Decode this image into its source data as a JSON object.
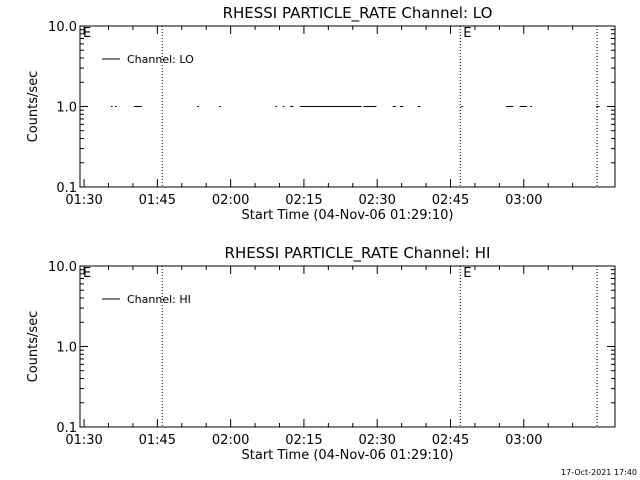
{
  "footer_timestamp": "17-Oct-2021 17:40",
  "chart_data": [
    {
      "type": "line",
      "title": "RHESSI PARTICLE_RATE Channel: LO",
      "xlabel": "Start Time (04-Nov-06 01:29:10)",
      "ylabel": "Counts/sec",
      "y_scale": "log",
      "ylim": [
        0.1,
        10.0
      ],
      "y_ticks": [
        "10.0",
        "1.0",
        "0.1"
      ],
      "x_tick_labels": [
        "01:30",
        "01:45",
        "02:00",
        "02:15",
        "02:30",
        "02:45",
        "03:00"
      ],
      "x_range": [
        "01:29:10",
        "03:18:40"
      ],
      "legend": {
        "label": "Channel: LO",
        "placement": "top-left"
      },
      "markers": [
        {
          "label": "E",
          "x": "01:29:10"
        },
        {
          "label": "",
          "x": "01:46:00"
        },
        {
          "label": "E",
          "x": "02:47:00"
        },
        {
          "label": "",
          "x": "03:15:00"
        }
      ],
      "series": [
        {
          "values": 1.0,
          "segments": [
            [
              "01:35:30",
              "01:35:50"
            ],
            [
              "01:36:20",
              "01:36:40"
            ],
            [
              "01:40:10",
              "01:41:50"
            ],
            [
              "01:53:10",
              "01:53:30"
            ],
            [
              "01:57:40",
              "01:58:00"
            ],
            [
              "02:09:10",
              "02:09:30"
            ],
            [
              "02:10:40",
              "02:11:00"
            ],
            [
              "02:12:10",
              "02:12:50"
            ],
            [
              "02:14:10",
              "02:26:50"
            ],
            [
              "02:27:10",
              "02:29:50"
            ],
            [
              "02:33:10",
              "02:33:50"
            ],
            [
              "02:34:40",
              "02:35:20"
            ],
            [
              "02:38:20",
              "02:38:50"
            ],
            [
              "02:47:10",
              "02:47:30"
            ],
            [
              "02:56:20",
              "02:57:50"
            ],
            [
              "02:59:10",
              "03:00:40"
            ],
            [
              "03:01:20",
              "03:01:40"
            ],
            [
              "03:14:50",
              "03:15:30"
            ]
          ]
        }
      ]
    },
    {
      "type": "line",
      "title": "RHESSI PARTICLE_RATE Channel: HI",
      "xlabel": "Start Time (04-Nov-06 01:29:10)",
      "ylabel": "Counts/sec",
      "y_scale": "log",
      "ylim": [
        0.1,
        10.0
      ],
      "y_ticks": [
        "10.0",
        "1.0",
        "0.1"
      ],
      "x_tick_labels": [
        "01:30",
        "01:45",
        "02:00",
        "02:15",
        "02:30",
        "02:45",
        "03:00"
      ],
      "x_range": [
        "01:29:10",
        "03:18:40"
      ],
      "legend": {
        "label": "Channel: HI",
        "placement": "top-left"
      },
      "markers": [
        {
          "label": "E",
          "x": "01:29:10"
        },
        {
          "label": "",
          "x": "01:46:00"
        },
        {
          "label": "E",
          "x": "02:47:00"
        },
        {
          "label": "",
          "x": "03:15:00"
        }
      ],
      "series": [
        {
          "values": [],
          "segments": []
        }
      ]
    }
  ]
}
